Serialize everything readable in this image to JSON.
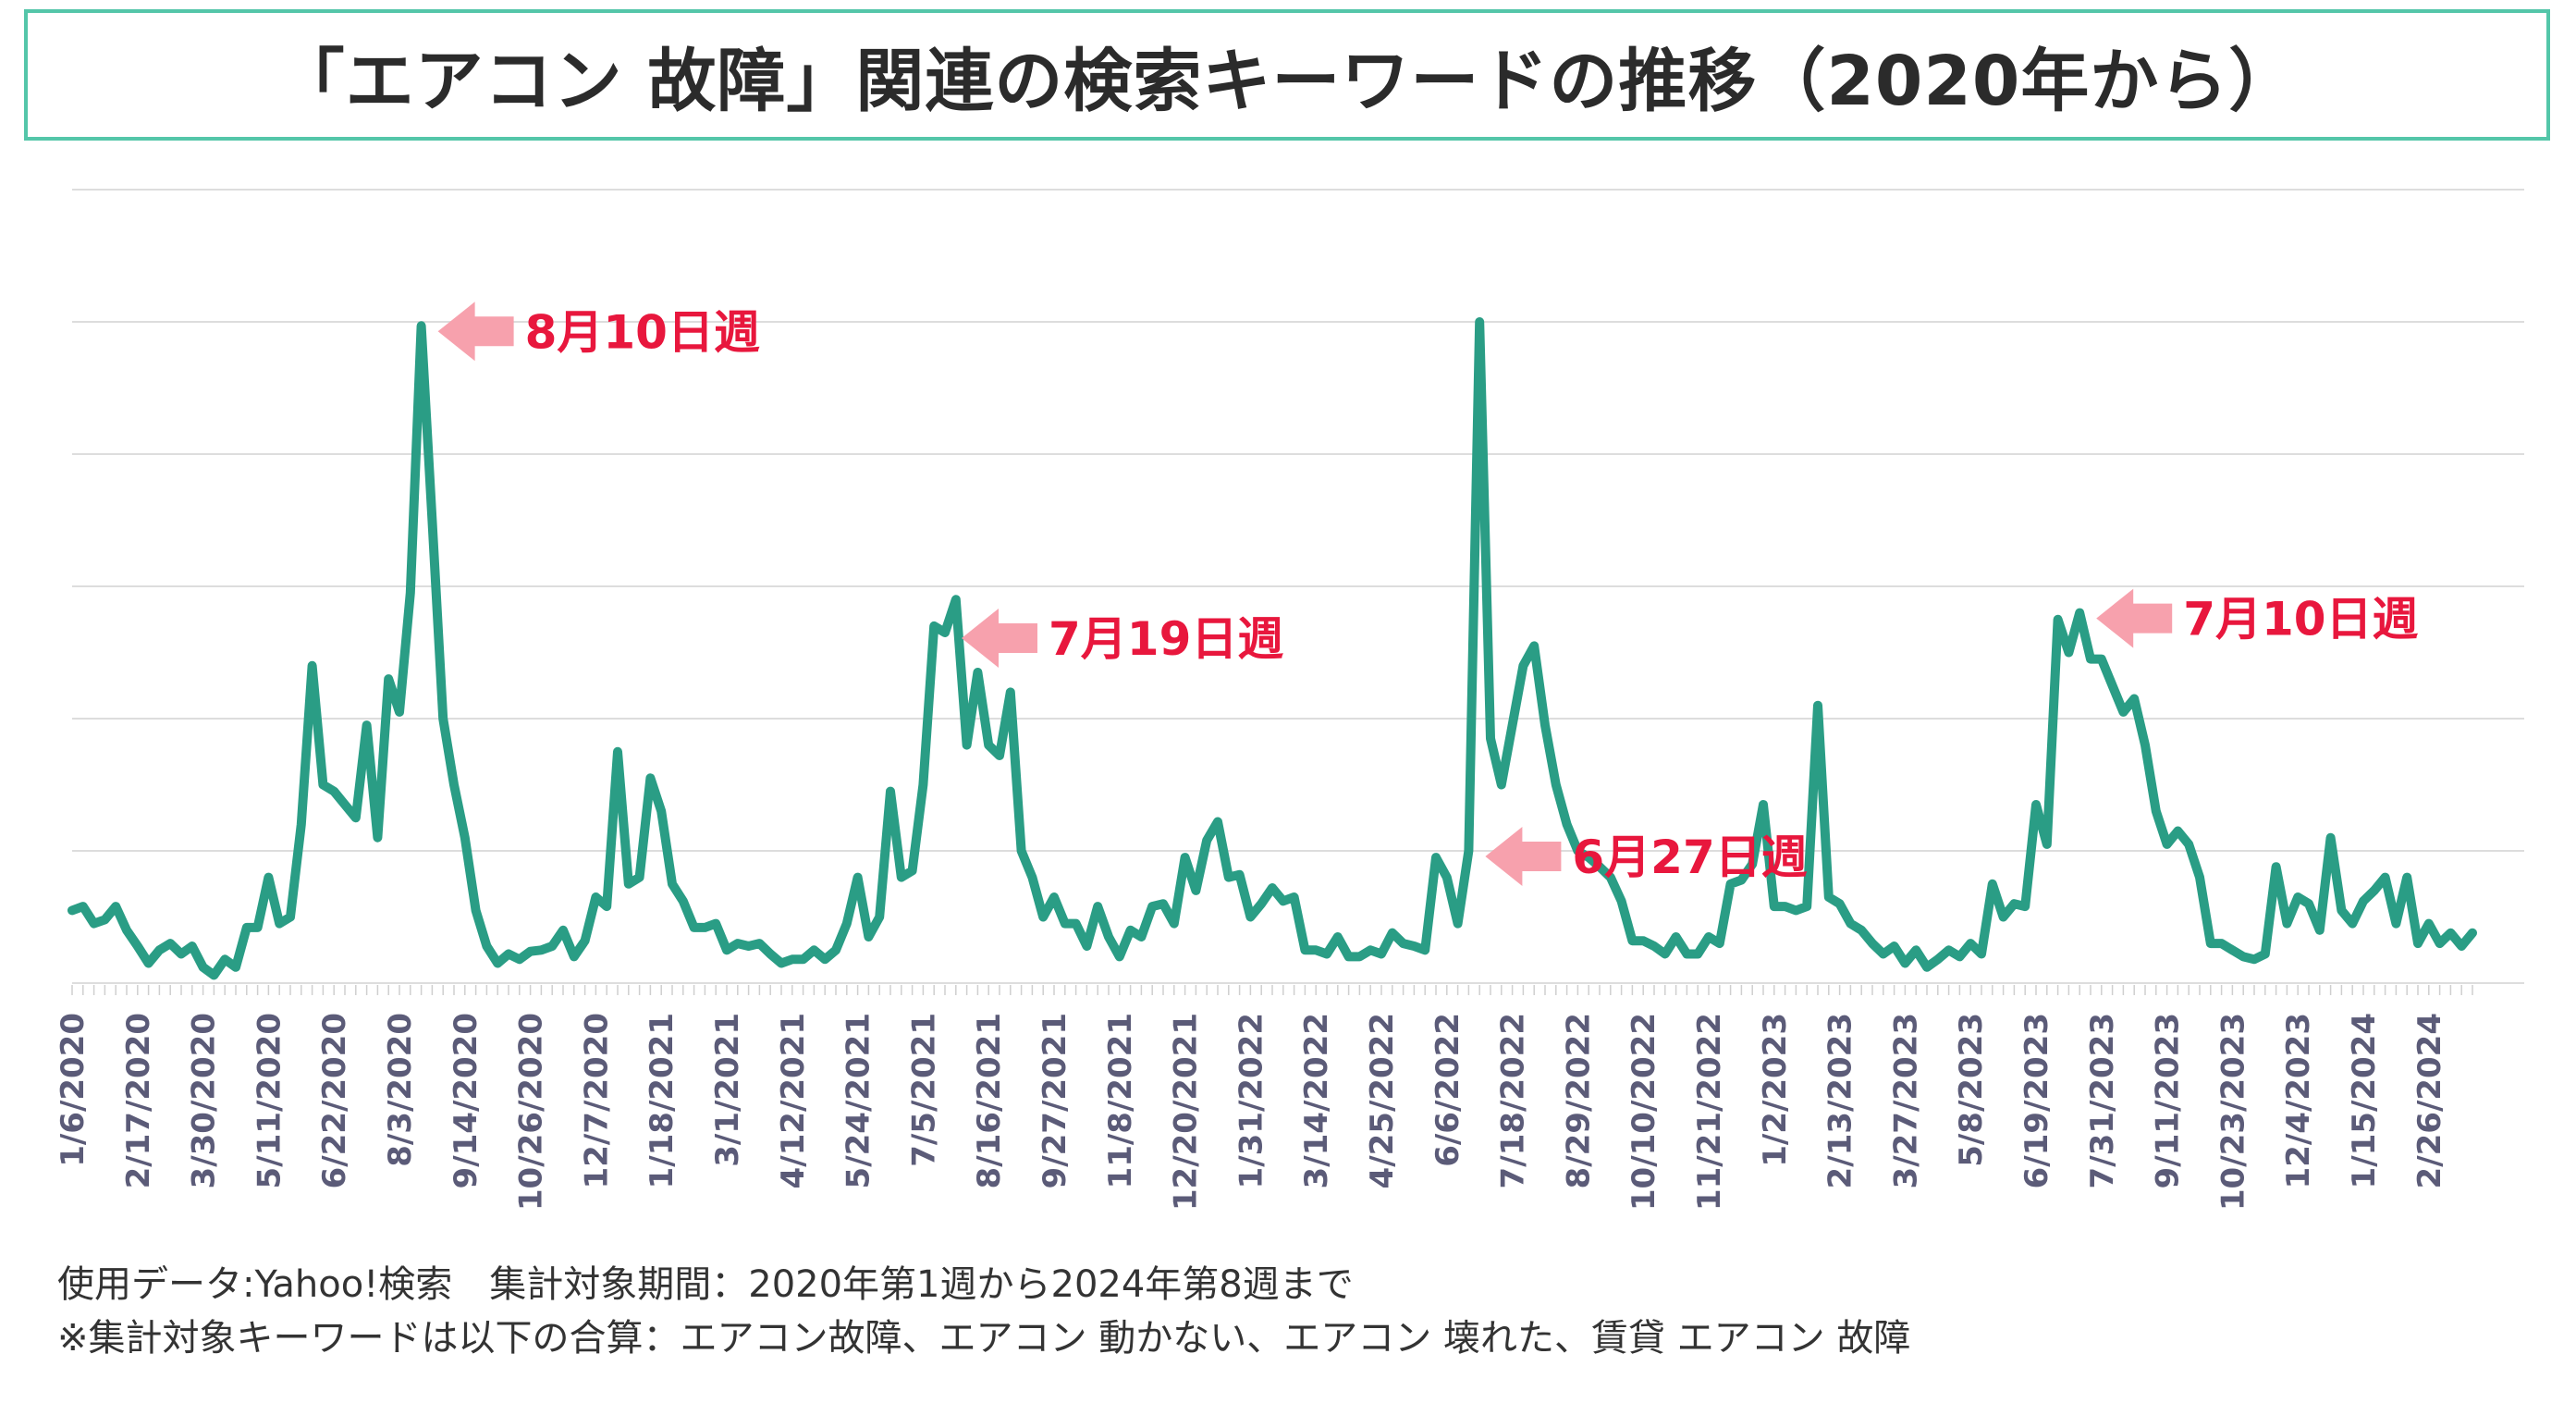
{
  "title": "「エアコン 故障」関連の検索キーワードの推移（2020年から）",
  "footer": {
    "line1": "使用データ:Yahoo!検索　集計対象期間：2020年第1週から2024年第8週まで",
    "line2": "※集計対象キーワードは以下の合算：エアコン故障、エアコン 動かない、エアコン 壊れた、賃貸 エアコン 故障"
  },
  "colors": {
    "line": "#2a9d85",
    "title_border": "#54c6a9",
    "annotation": "#e8173d",
    "arrow": "#f7a1ad",
    "grid": "#dddddd",
    "tick_label": "#5b5b78"
  },
  "chart_data": {
    "type": "line",
    "x_start": "1/6/2020",
    "x_interval": "weekly",
    "xtick_labels": [
      "1/6/2020",
      "2/17/2020",
      "3/30/2020",
      "5/11/2020",
      "6/22/2020",
      "8/3/2020",
      "9/14/2020",
      "10/26/2020",
      "12/7/2020",
      "1/18/2021",
      "3/1/2021",
      "4/12/2021",
      "5/24/2021",
      "7/5/2021",
      "8/16/2021",
      "9/27/2021",
      "11/8/2021",
      "12/20/2021",
      "1/31/2022",
      "3/14/2022",
      "4/25/2022",
      "6/6/2022",
      "7/18/2022",
      "8/29/2022",
      "10/10/2022",
      "11/21/2022",
      "1/2/2023",
      "2/13/2023",
      "3/27/2023",
      "5/8/2023",
      "6/19/2023",
      "7/31/2023",
      "9/11/2023",
      "10/23/2023",
      "12/4/2023",
      "1/15/2024",
      "2/26/2024"
    ],
    "ylim": [
      0,
      6
    ],
    "grid": true,
    "values": [
      0.55,
      0.58,
      0.45,
      0.48,
      0.58,
      0.4,
      0.28,
      0.15,
      0.25,
      0.3,
      0.22,
      0.28,
      0.12,
      0.06,
      0.18,
      0.12,
      0.42,
      0.42,
      0.8,
      0.45,
      0.5,
      1.2,
      2.4,
      1.5,
      1.45,
      1.35,
      1.25,
      1.95,
      1.1,
      2.3,
      2.05,
      2.95,
      4.97,
      3.5,
      2.0,
      1.5,
      1.1,
      0.55,
      0.28,
      0.15,
      0.22,
      0.18,
      0.24,
      0.25,
      0.28,
      0.4,
      0.2,
      0.32,
      0.65,
      0.58,
      1.75,
      0.75,
      0.8,
      1.55,
      1.3,
      0.75,
      0.62,
      0.42,
      0.42,
      0.45,
      0.25,
      0.3,
      0.28,
      0.3,
      0.22,
      0.15,
      0.18,
      0.18,
      0.25,
      0.18,
      0.25,
      0.45,
      0.8,
      0.35,
      0.5,
      1.45,
      0.8,
      0.85,
      1.5,
      2.7,
      2.65,
      2.9,
      1.8,
      2.35,
      1.8,
      1.72,
      2.2,
      1.0,
      0.8,
      0.5,
      0.65,
      0.45,
      0.45,
      0.28,
      0.58,
      0.35,
      0.2,
      0.4,
      0.35,
      0.58,
      0.6,
      0.45,
      0.95,
      0.7,
      1.08,
      1.22,
      0.8,
      0.82,
      0.5,
      0.6,
      0.72,
      0.62,
      0.65,
      0.25,
      0.25,
      0.22,
      0.35,
      0.2,
      0.2,
      0.25,
      0.22,
      0.38,
      0.3,
      0.28,
      0.25,
      0.95,
      0.8,
      0.45,
      1.0,
      5.0,
      1.85,
      1.5,
      1.95,
      2.4,
      2.55,
      1.95,
      1.5,
      1.2,
      1.0,
      0.95,
      0.88,
      0.8,
      0.62,
      0.32,
      0.32,
      0.28,
      0.22,
      0.35,
      0.22,
      0.22,
      0.35,
      0.3,
      0.75,
      0.78,
      0.9,
      1.35,
      0.58,
      0.58,
      0.55,
      0.58,
      2.1,
      0.65,
      0.6,
      0.45,
      0.4,
      0.3,
      0.22,
      0.28,
      0.15,
      0.25,
      0.12,
      0.18,
      0.25,
      0.2,
      0.3,
      0.22,
      0.75,
      0.5,
      0.6,
      0.58,
      1.35,
      1.05,
      2.75,
      2.5,
      2.8,
      2.45,
      2.45,
      2.25,
      2.05,
      2.15,
      1.8,
      1.3,
      1.05,
      1.15,
      1.05,
      0.8,
      0.3,
      0.3,
      0.25,
      0.2,
      0.18,
      0.22,
      0.88,
      0.45,
      0.65,
      0.6,
      0.4,
      1.1,
      0.55,
      0.45,
      0.62,
      0.7,
      0.8,
      0.45,
      0.8,
      0.3,
      0.45,
      0.3,
      0.38,
      0.28,
      0.38
    ]
  },
  "annotations": [
    {
      "label": "8月10日週",
      "index": 32
    },
    {
      "label": "7月19日週",
      "index": 80
    },
    {
      "label": "6月27日週",
      "index": 128
    },
    {
      "label": "7月10日週",
      "index": 184
    }
  ]
}
